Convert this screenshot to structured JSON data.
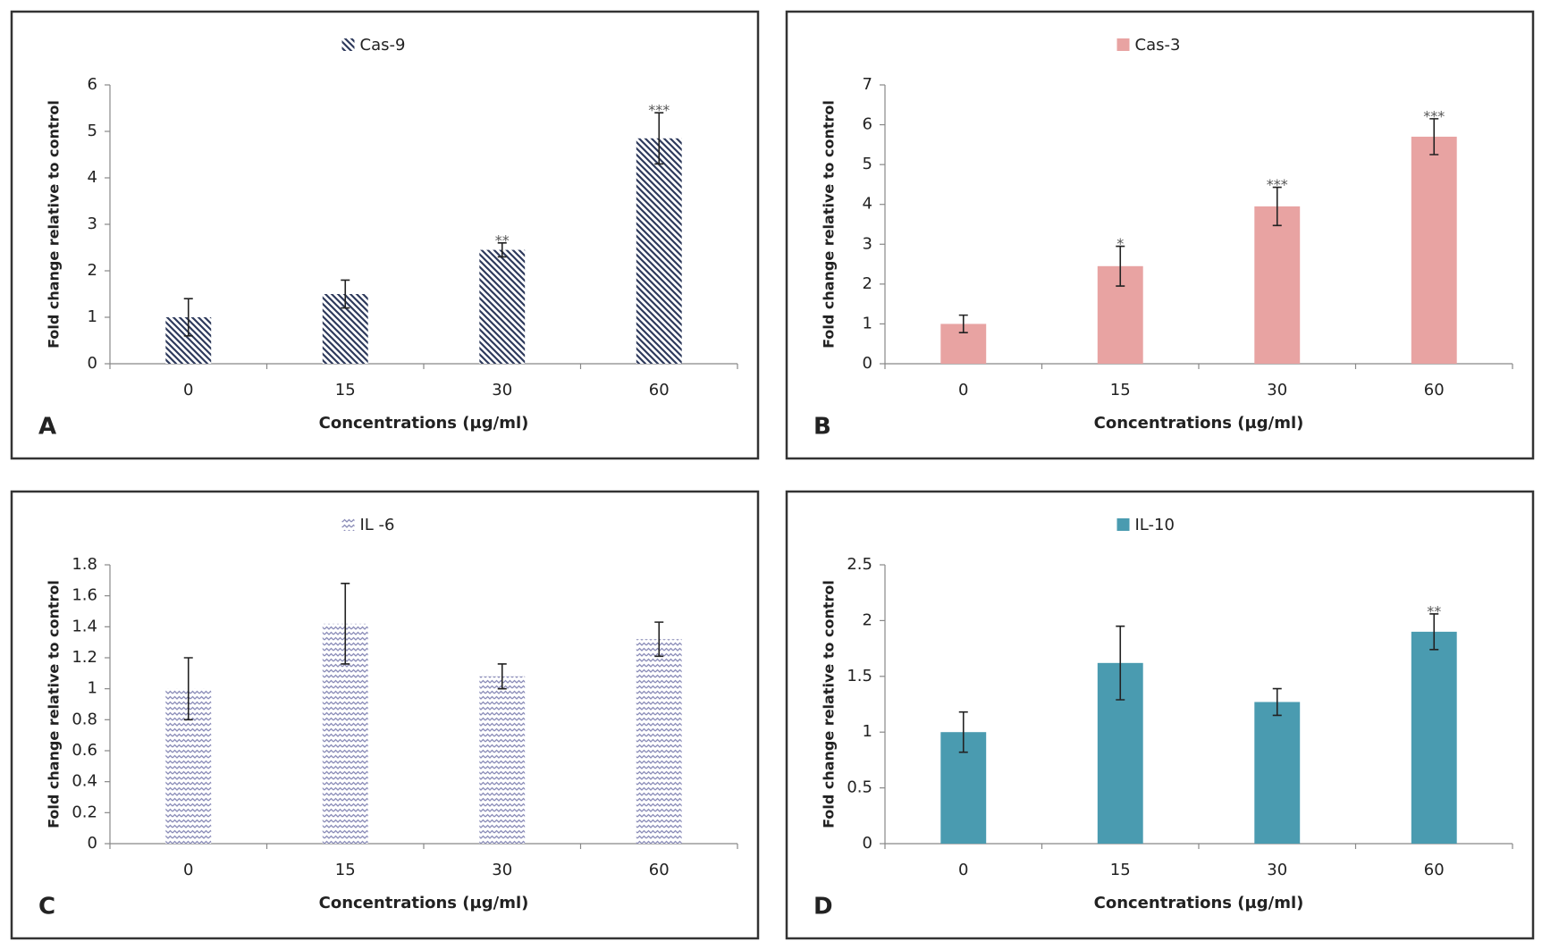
{
  "chart_data": [
    {
      "type": "bar",
      "panel_label": "A",
      "x_label": "Concentrations (µg/ml)",
      "y_label": "Fold change relative to control",
      "categories": [
        "0",
        "15",
        "30",
        "60"
      ],
      "series": [
        {
          "name": "Cas-9",
          "color": "#2e3a5c",
          "pattern": "diagonal",
          "values": [
            1,
            1.5,
            2.45,
            4.85
          ],
          "errors": [
            0.4,
            0.3,
            0.15,
            0.55
          ],
          "significance": [
            null,
            null,
            "**",
            "***"
          ]
        }
      ],
      "ylim": [
        0,
        6
      ],
      "yticks": [
        0,
        1,
        2,
        3,
        4,
        5,
        6
      ],
      "grid": false
    },
    {
      "type": "bar",
      "panel_label": "B",
      "x_label": "Concentrations (µg/ml)",
      "y_label": "Fold change relative to control",
      "categories": [
        "0",
        "15",
        "30",
        "60"
      ],
      "series": [
        {
          "name": "Cas-3",
          "color": "#e8a3a2",
          "pattern": "solid",
          "values": [
            1,
            2.45,
            3.95,
            5.7
          ],
          "errors": [
            0.22,
            0.5,
            0.48,
            0.45
          ],
          "significance": [
            null,
            "*",
            "***",
            "***"
          ]
        }
      ],
      "ylim": [
        0,
        7
      ],
      "yticks": [
        0,
        1,
        2,
        3,
        4,
        5,
        6,
        7
      ],
      "grid": false
    },
    {
      "type": "bar",
      "panel_label": "C",
      "x_label": "Concentrations (µg/ml)",
      "y_label": "Fold change relative to control",
      "categories": [
        "0",
        "15",
        "30",
        "60"
      ],
      "series": [
        {
          "name": "IL -6",
          "color": "#8a8cb8",
          "pattern": "zigzag",
          "values": [
            1,
            1.42,
            1.08,
            1.32
          ],
          "errors": [
            0.2,
            0.26,
            0.08,
            0.11
          ],
          "significance": [
            null,
            null,
            null,
            null
          ]
        }
      ],
      "ylim": [
        0,
        1.8
      ],
      "yticks": [
        0,
        0.2,
        0.4,
        0.6,
        0.8,
        1,
        1.2,
        1.4,
        1.6,
        1.8
      ],
      "grid": false
    },
    {
      "type": "bar",
      "panel_label": "D",
      "x_label": "Concentrations (µg/ml)",
      "y_label": "Fold change relative to control",
      "categories": [
        "0",
        "15",
        "30",
        "60"
      ],
      "series": [
        {
          "name": "IL-10",
          "color": "#4a9bb0",
          "pattern": "solid",
          "values": [
            1,
            1.62,
            1.27,
            1.9
          ],
          "errors": [
            0.18,
            0.33,
            0.12,
            0.16
          ],
          "significance": [
            null,
            null,
            null,
            "**"
          ]
        }
      ],
      "ylim": [
        0,
        2.5
      ],
      "yticks": [
        0,
        0.5,
        1,
        1.5,
        2,
        2.5
      ],
      "grid": false
    }
  ]
}
